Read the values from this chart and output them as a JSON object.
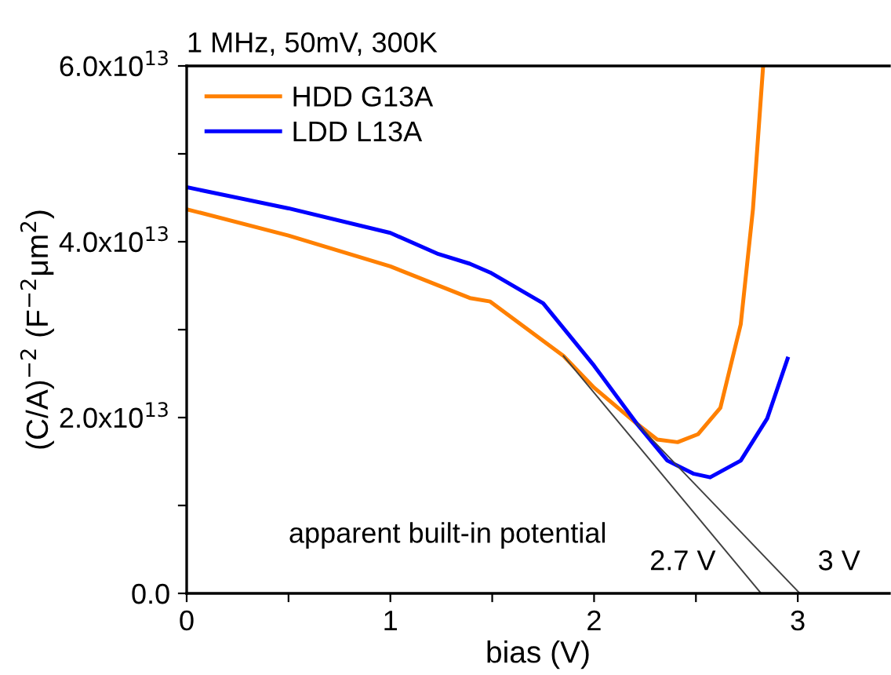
{
  "chart_data": {
    "type": "line",
    "title": "1 MHz, 50mV, 300K",
    "xlabel": "bias (V)",
    "ylabel": "(C/A)$^{−2}$ (F$^{−2}$μm$^{2}$)",
    "series": [
      {
        "name": "HDD G13A",
        "color": "#ff8000",
        "x": [
          0,
          0.5,
          1.0,
          1.39,
          1.49,
          1.85,
          2.0,
          2.21,
          2.31,
          2.41,
          2.51,
          2.62,
          2.72,
          2.78,
          2.83
        ],
        "values": [
          43700000000000.0,
          40700000000000.0,
          37200000000000.0,
          33600000000000.0,
          33200000000000.0,
          27000000000000.0,
          23400000000000.0,
          19300000000000.0,
          17500000000000.0,
          17200000000000.0,
          18100000000000.0,
          21100000000000.0,
          30600000000000.0,
          43700000000000.0,
          60000000000000.0
        ]
      },
      {
        "name": "LDD L13A",
        "color": "#0000ff",
        "x": [
          0,
          0.5,
          1.0,
          1.236,
          1.39,
          1.49,
          1.75,
          2.0,
          2.21,
          2.36,
          2.49,
          2.57,
          2.72,
          2.85,
          2.95
        ],
        "values": [
          46200000000000.0,
          43800000000000.0,
          41000000000000.0,
          38600000000000.0,
          37500000000000.0,
          36500000000000.0,
          33000000000000.0,
          25900000000000.0,
          19300000000000.0,
          15100000000000.0,
          13600000000000.0,
          13200000000000.0,
          15100000000000.0,
          19900000000000.0,
          26700000000000.0
        ]
      },
      {
        "type": "line",
        "color": "#404040",
        "x": [
          1.85,
          2.82
        ],
        "values": [
          27000000000000.0,
          0
        ]
      },
      {
        "type": "line",
        "color": "#404040",
        "x": [
          2.21,
          3.01
        ],
        "values": [
          19300000000000.0,
          0
        ]
      }
    ],
    "annotations": [
      "apparent built-in potential",
      {
        "text": "2.7 V",
        "x": 2.82,
        "y": 0
      },
      {
        "text": "3 V",
        "x": 3.01,
        "y": 0
      }
    ],
    "xlim": [
      0,
      3.45
    ],
    "ylim": [
      0,
      60000000000000.0
    ],
    "xticks": [
      0,
      {
        "value": 0.5,
        "label": null
      },
      1,
      {
        "value": 1.5,
        "label": null
      },
      2,
      {
        "value": 2.5,
        "label": null
      },
      3
    ],
    "yticks": [
      {
        "value": 0,
        "label": "0.0"
      },
      {
        "value": 10000000000000.0,
        "label": null
      },
      {
        "value": 20000000000000.0,
        "label": "2.0x10$^{13}$"
      },
      {
        "value": 30000000000000.0,
        "label": null
      },
      {
        "value": 40000000000000.0,
        "label": "4.0x10$^{13}$"
      },
      {
        "value": 50000000000000.0,
        "label": null
      },
      {
        "value": 60000000000000.0,
        "label": "6.0x10$^{13}$"
      }
    ],
    "legend": "top left",
    "grid": false
  }
}
